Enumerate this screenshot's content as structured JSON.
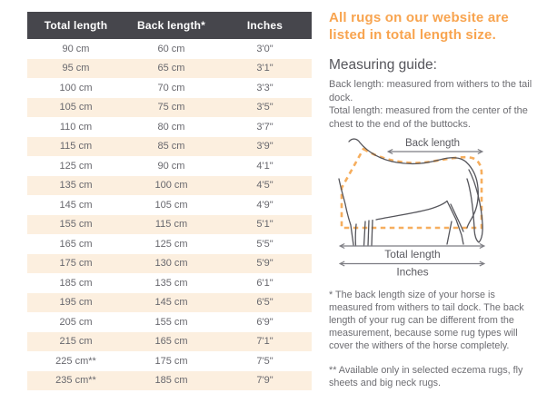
{
  "table": {
    "headers": [
      "Total length",
      "Back length*",
      "Inches"
    ],
    "rows": [
      [
        "90 cm",
        "60 cm",
        "3'0\""
      ],
      [
        "95 cm",
        "65 cm",
        "3'1\""
      ],
      [
        "100 cm",
        "70 cm",
        "3'3\""
      ],
      [
        "105 cm",
        "75 cm",
        "3'5\""
      ],
      [
        "110 cm",
        "80 cm",
        "3'7\""
      ],
      [
        "115 cm",
        "85 cm",
        "3'9\""
      ],
      [
        "125 cm",
        "90 cm",
        "4'1\""
      ],
      [
        "135 cm",
        "100 cm",
        "4'5\""
      ],
      [
        "145 cm",
        "105 cm",
        "4'9\""
      ],
      [
        "155 cm",
        "115 cm",
        "5'1\""
      ],
      [
        "165 cm",
        "125 cm",
        "5'5\""
      ],
      [
        "175 cm",
        "130 cm",
        "5'9\""
      ],
      [
        "185 cm",
        "135 cm",
        "6'1\""
      ],
      [
        "195 cm",
        "145 cm",
        "6'5\""
      ],
      [
        "205 cm",
        "155 cm",
        "6'9\""
      ],
      [
        "215 cm",
        "165 cm",
        "7'1\""
      ],
      [
        "225 cm**",
        "175 cm",
        "7'5\""
      ],
      [
        "235 cm**",
        "185 cm",
        "7'9\""
      ]
    ]
  },
  "right": {
    "headline": "All rugs on our website are listed in total length size.",
    "guide_title": "Measuring guide:",
    "guide_lines": [
      "Back length: measured from withers to the tail dock.",
      "Total length: measured from the center of the chest to the end of the buttocks."
    ],
    "diagram": {
      "back_length_label": "Back length",
      "total_length_label": "Total length",
      "inches_label": "Inches"
    },
    "footnote1": "* The back length size of your horse is measured from withers to tail dock. The back length of your rug can be different from the measurement, because some rug types will cover the withers of the horse completely.",
    "footnote2": "** Available only in selected eczema rugs, fly sheets and big neck rugs."
  },
  "colors": {
    "header_bg": "#46464c",
    "row_alt_bg": "#fcefdf",
    "accent_orange": "#f8a44f",
    "rug_dash_orange": "#f6ae5e",
    "text_gray": "#67676d",
    "outline_gray": "#55555b",
    "arrow_gray": "#7c7c82"
  }
}
